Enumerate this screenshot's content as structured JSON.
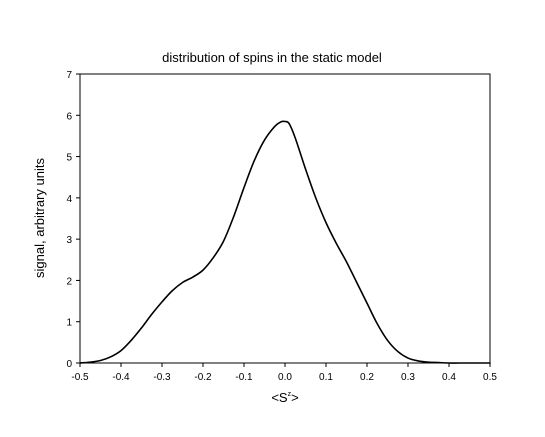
{
  "chart_data": {
    "type": "line",
    "title": "distribution of spins in the static model",
    "ylabel": "signal, arbitrary units",
    "xlabel": {
      "prefix": "<S",
      "sup": "z",
      "suffix": ">"
    },
    "xlim": [
      -0.5,
      0.5
    ],
    "ylim": [
      0,
      7
    ],
    "xticks": [
      -0.5,
      -0.4,
      -0.3,
      -0.2,
      -0.1,
      0.0,
      0.1,
      0.2,
      0.3,
      0.4,
      0.5
    ],
    "xtick_labels": [
      "-0.5",
      "-0.4",
      "-0.3",
      "-0.2",
      "-0.1",
      "0.0",
      "0.1",
      "0.2",
      "0.3",
      "0.4",
      "0.5"
    ],
    "yticks": [
      0,
      1,
      2,
      3,
      4,
      5,
      6,
      7
    ],
    "ytick_labels": [
      "0",
      "1",
      "2",
      "3",
      "4",
      "5",
      "6",
      "7"
    ],
    "grid": false,
    "legend": false,
    "series": [
      {
        "color": "#000000",
        "x": [
          -0.5,
          -0.475,
          -0.45,
          -0.425,
          -0.4,
          -0.375,
          -0.35,
          -0.325,
          -0.3,
          -0.275,
          -0.25,
          -0.225,
          -0.2,
          -0.175,
          -0.15,
          -0.125,
          -0.1,
          -0.075,
          -0.05,
          -0.025,
          -0.01,
          0.0,
          0.01,
          0.025,
          0.05,
          0.075,
          0.1,
          0.125,
          0.15,
          0.175,
          0.2,
          0.225,
          0.25,
          0.275,
          0.3,
          0.325,
          0.35,
          0.375,
          0.4,
          0.425,
          0.45,
          0.475,
          0.5
        ],
        "y": [
          0.0,
          0.02,
          0.06,
          0.15,
          0.3,
          0.55,
          0.85,
          1.18,
          1.48,
          1.75,
          1.95,
          2.08,
          2.25,
          2.55,
          2.95,
          3.55,
          4.25,
          4.9,
          5.4,
          5.73,
          5.84,
          5.85,
          5.8,
          5.45,
          4.7,
          4.0,
          3.4,
          2.9,
          2.45,
          1.95,
          1.45,
          0.95,
          0.55,
          0.28,
          0.12,
          0.05,
          0.02,
          0.01,
          0.0,
          0.0,
          0.0,
          0.0,
          0.0
        ]
      }
    ]
  }
}
